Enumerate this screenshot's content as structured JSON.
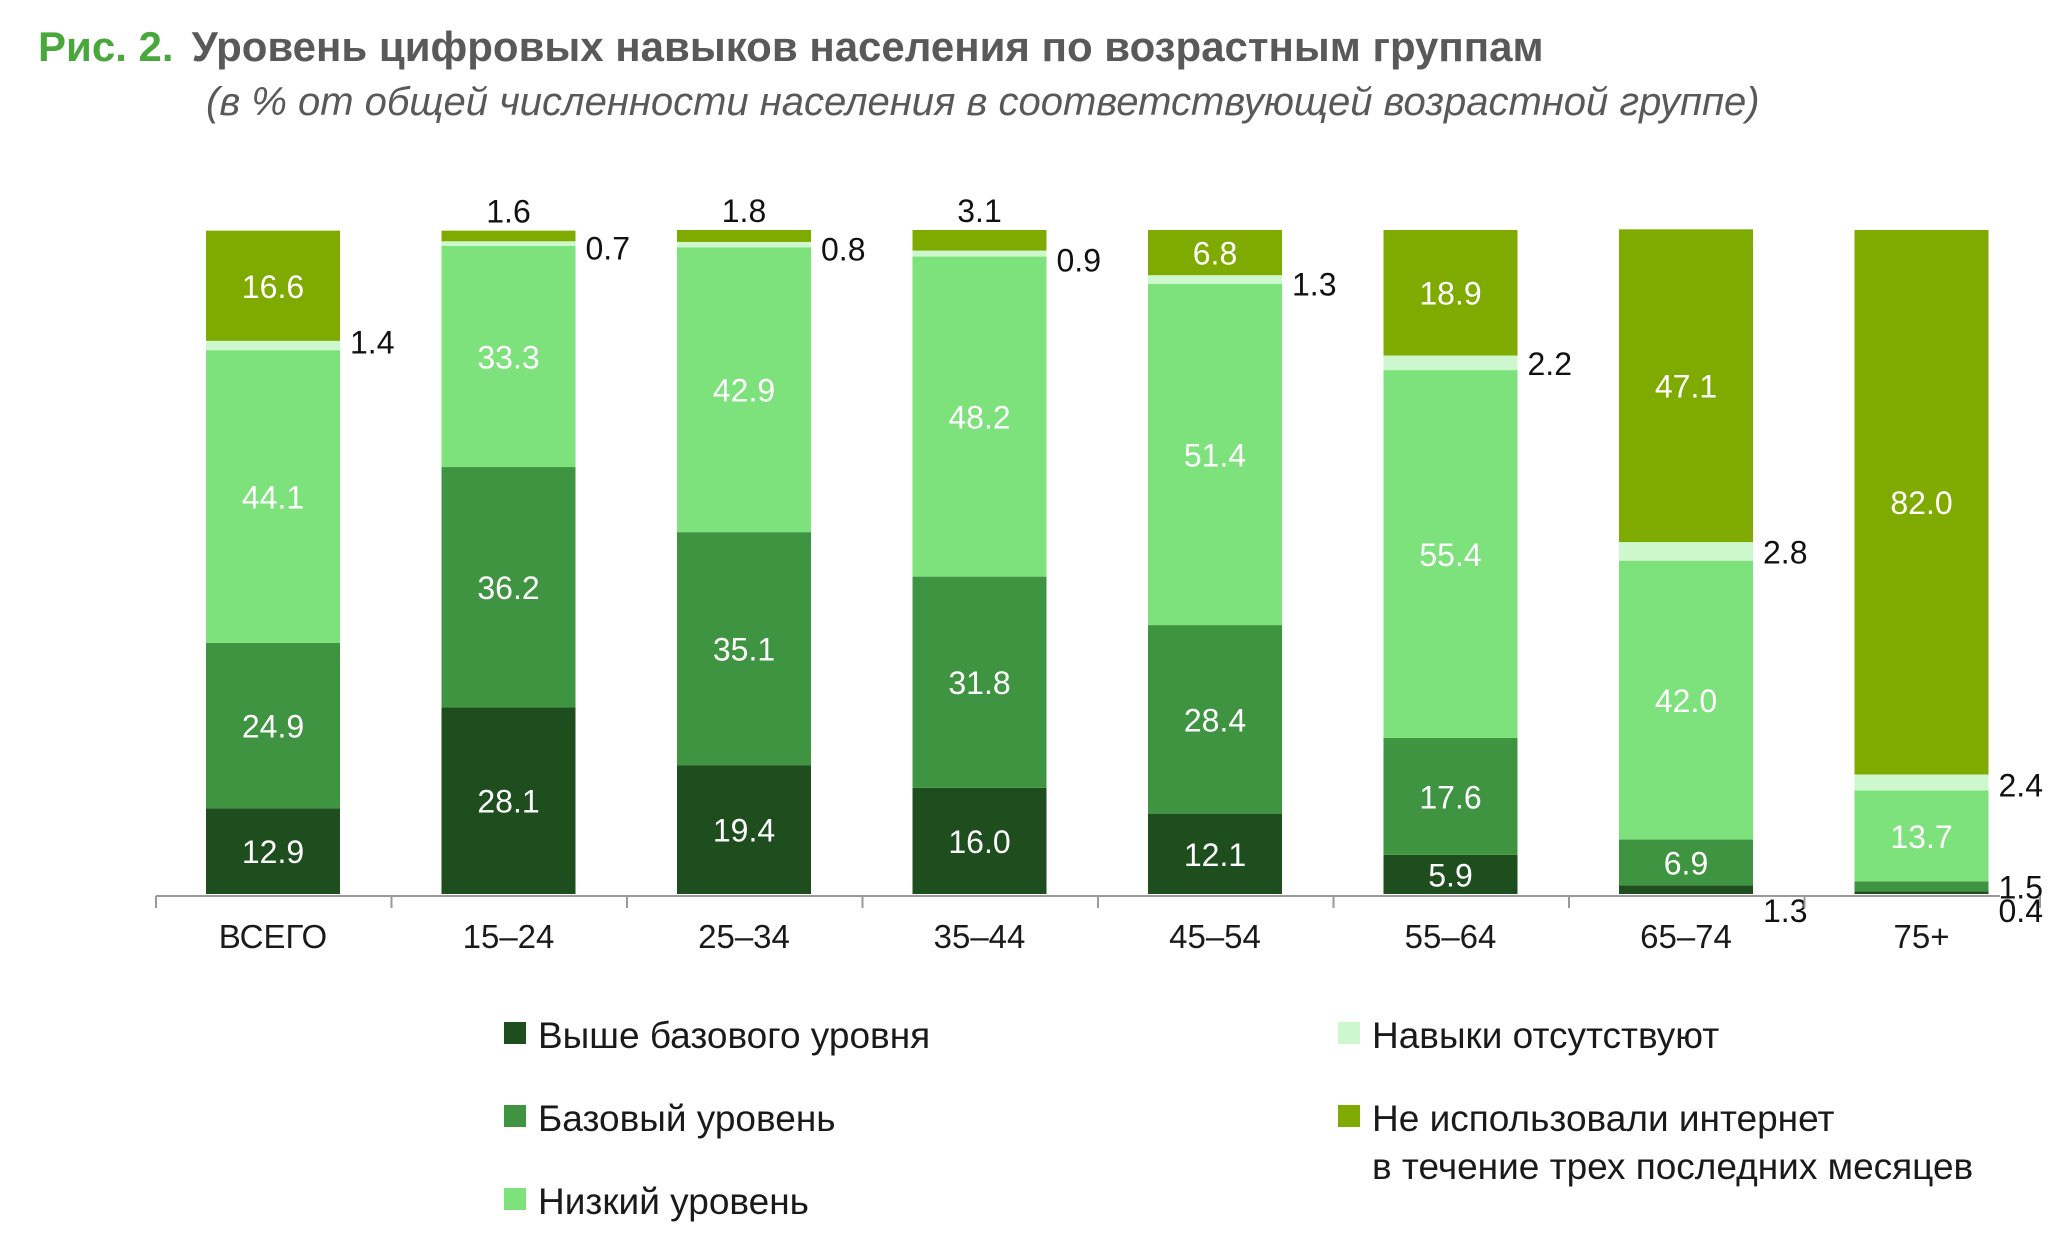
{
  "header": {
    "fig_label": "Рис. 2.",
    "title": "Уровень цифровых навыков населения по возрастным группам",
    "subtitle": "(в % от общей численности населения в соответствующей возрастной группе)"
  },
  "chart_data": {
    "type": "bar",
    "stacked": true,
    "categories": [
      "ВСЕГО",
      "15–24",
      "25–34",
      "35–44",
      "45–54",
      "55–64",
      "65–74",
      "75+"
    ],
    "ylim": [
      0,
      100
    ],
    "grid": false,
    "legend_position": "bottom",
    "series": [
      {
        "name": "Выше базового уровня",
        "color": "#1e4d1e",
        "values": [
          12.9,
          28.1,
          19.4,
          16.0,
          12.1,
          5.9,
          1.3,
          0.4
        ],
        "labels": [
          "12.9",
          "28.1",
          "19.4",
          "16.0",
          "12.1",
          "5.9",
          "1.3",
          "0.4"
        ]
      },
      {
        "name": "Базовый уровень",
        "color": "#3f9441",
        "values": [
          24.9,
          36.2,
          35.1,
          31.8,
          28.4,
          17.6,
          6.9,
          1.5
        ],
        "labels": [
          "24.9",
          "36.2",
          "35.1",
          "31.8",
          "28.4",
          "17.6",
          "6.9",
          "1.5"
        ]
      },
      {
        "name": "Низкий уровень",
        "color": "#7ee27c",
        "values": [
          44.1,
          33.3,
          42.9,
          48.2,
          51.4,
          55.4,
          42.0,
          13.7
        ],
        "labels": [
          "44.1",
          "33.3",
          "42.9",
          "48.2",
          "51.4",
          "55.4",
          "42.0",
          "13.7"
        ]
      },
      {
        "name": "Навыки отсутствуют",
        "color": "#cdf7cd",
        "values": [
          1.4,
          0.7,
          0.8,
          0.9,
          1.3,
          2.2,
          2.8,
          2.4
        ],
        "labels": [
          "1.4",
          "0.7",
          "0.8",
          "0.9",
          "1.3",
          "2.2",
          "2.8",
          "2.4"
        ]
      },
      {
        "name": "Не использовали интернет\nв течение трех последних месяцев",
        "color": "#7fab00",
        "values": [
          16.6,
          1.6,
          1.8,
          3.1,
          6.8,
          18.9,
          47.1,
          82.0
        ],
        "labels": [
          "16.6",
          "1.6",
          "1.8",
          "3.1",
          "6.8",
          "18.9",
          "47.1",
          "82.0"
        ]
      }
    ]
  }
}
